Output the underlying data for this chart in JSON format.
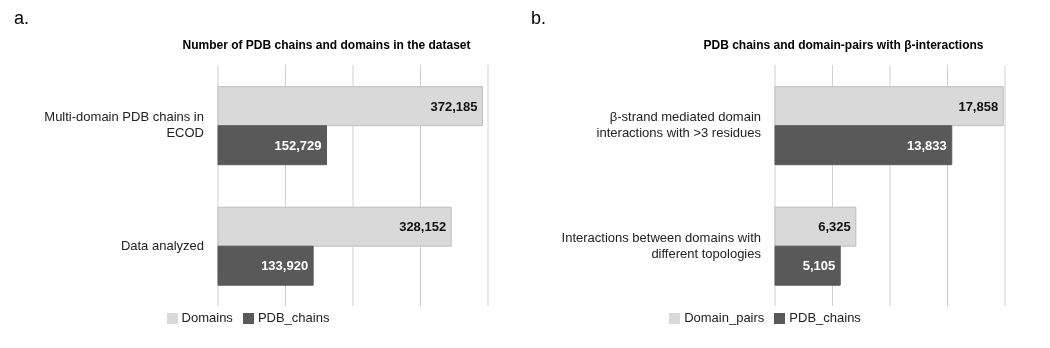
{
  "chart_data": [
    {
      "type": "bar",
      "orientation": "horizontal",
      "title": "Number of PDB chains and domains in the dataset",
      "annotations": [
        "a."
      ],
      "categories": [
        "Multi-domain PDB chains in ECOD",
        "Data analyzed"
      ],
      "series": [
        {
          "name": "Domains",
          "color": "#d9d9d9",
          "values": [
            372185,
            328152
          ],
          "value_labels": [
            "372,185",
            "328,152"
          ]
        },
        {
          "name": "PDB_chains",
          "color": "#595959",
          "values": [
            152729,
            133920
          ],
          "value_labels": [
            "152,729",
            "133,920"
          ]
        }
      ],
      "grid": "x",
      "legend": "bottom",
      "tick_labels": "y"
    },
    {
      "type": "bar",
      "orientation": "horizontal",
      "title": "PDB chains and domain-pairs with β-interactions",
      "annotations": [
        "b."
      ],
      "categories": [
        "β-strand mediated domain interactions with >3 residues",
        "Interactions between domains with different topologies"
      ],
      "series": [
        {
          "name": "Domain_pairs",
          "color": "#d9d9d9",
          "values": [
            17858,
            6325
          ],
          "value_labels": [
            "17,858",
            "6,325"
          ]
        },
        {
          "name": "PDB_chains",
          "color": "#595959",
          "values": [
            13833,
            5105
          ],
          "value_labels": [
            "13,833",
            "5,105"
          ]
        }
      ],
      "grid": "x",
      "legend": "bottom",
      "tick_labels": "y"
    }
  ]
}
